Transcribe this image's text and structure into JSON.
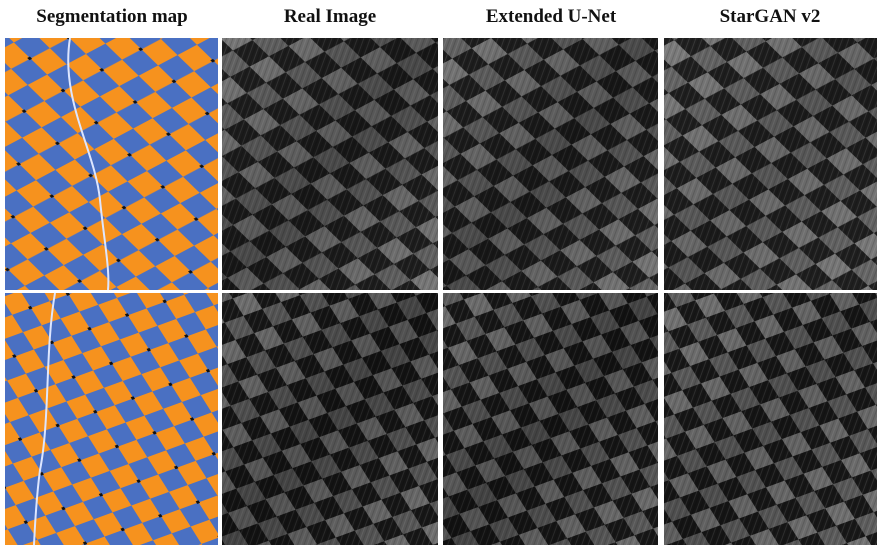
{
  "columns": [
    {
      "title": "Segmentation map"
    },
    {
      "title": "Real Image"
    },
    {
      "title": "Extended U-Net"
    },
    {
      "title": "StarGAN v2"
    }
  ]
}
